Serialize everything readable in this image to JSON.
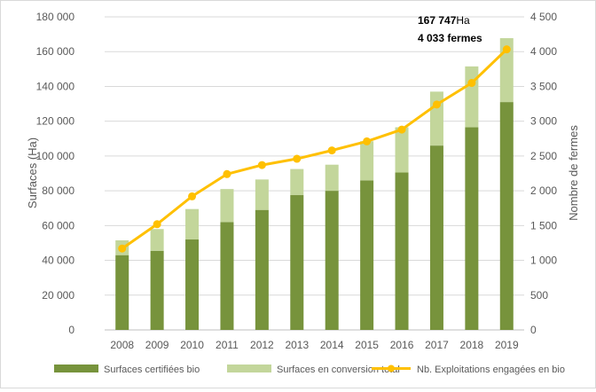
{
  "chart_data": {
    "type": "bar",
    "subtype": "stacked-bar-with-line-secondary-axis",
    "categories": [
      "2008",
      "2009",
      "2010",
      "2011",
      "2012",
      "2013",
      "2014",
      "2015",
      "2016",
      "2017",
      "2018",
      "2019"
    ],
    "series": [
      {
        "name": "Surfaces certifiées bio",
        "type": "bar",
        "axis": "left",
        "color": "#77933c",
        "values": [
          43000,
          45500,
          52000,
          62000,
          69000,
          77500,
          80000,
          86000,
          90500,
          106000,
          116500,
          131000
        ]
      },
      {
        "name": "Surfaces en conversion total",
        "type": "bar",
        "axis": "left",
        "color": "#c3d69b",
        "values": [
          8500,
          12500,
          17500,
          19000,
          17500,
          15000,
          15000,
          22500,
          26000,
          31000,
          35000,
          36747
        ]
      },
      {
        "name": "Nb. Exploitations engagées en bio",
        "type": "line",
        "axis": "right",
        "color": "#ffc000",
        "values": [
          1170,
          1520,
          1920,
          2240,
          2370,
          2460,
          2580,
          2710,
          2880,
          3240,
          3550,
          4033
        ]
      }
    ],
    "ylabel": "Surfaces (Ha)",
    "y2label": "Nombre de fermes",
    "ylim": [
      0,
      180000
    ],
    "y2lim": [
      0,
      4500
    ],
    "yticks": [
      "0",
      "20 000",
      "40 000",
      "60 000",
      "80 000",
      "100 000",
      "120 000",
      "140 000",
      "160 000",
      "180 000"
    ],
    "y2ticks": [
      "0",
      "500",
      "1 000",
      "1 500",
      "2 000",
      "2 500",
      "3 000",
      "3 500",
      "4 000",
      "4 500"
    ],
    "grid": true,
    "legend_position": "bottom",
    "annotations": {
      "surface_value": "167 747",
      "surface_unit": "Ha",
      "farms": "4 033 fermes"
    }
  }
}
